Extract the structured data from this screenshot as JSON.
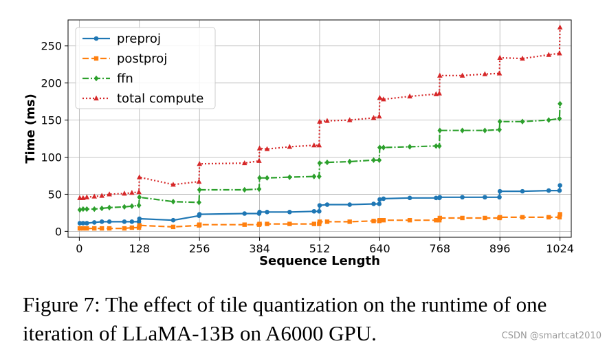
{
  "chart_data": {
    "type": "line",
    "title": "",
    "xlabel": "Sequence Length",
    "ylabel": "Time (ms)",
    "xlim": [
      -24,
      1048
    ],
    "ylim": [
      -8,
      285
    ],
    "xticks": [
      0,
      128,
      256,
      384,
      512,
      640,
      768,
      896,
      1024
    ],
    "yticks": [
      0,
      50,
      100,
      150,
      200,
      250
    ],
    "grid": true,
    "legend_position": "top-left",
    "series": [
      {
        "name": "preproj",
        "color": "#1f77b4",
        "style": "solid",
        "marker": "circle",
        "x": [
          1,
          8,
          16,
          32,
          48,
          64,
          96,
          112,
          127,
          128,
          200,
          255,
          256,
          352,
          383,
          384,
          400,
          448,
          500,
          511,
          512,
          528,
          576,
          627,
          639,
          640,
          648,
          704,
          760,
          767,
          768,
          816,
          864,
          895,
          896,
          944,
          1000,
          1023,
          1024
        ],
        "y": [
          11,
          11,
          11,
          12,
          13,
          13,
          13,
          13,
          13,
          17,
          15,
          21,
          23,
          24,
          24,
          26,
          26,
          26,
          27,
          27,
          35,
          36,
          36,
          37,
          37,
          43,
          44,
          45,
          45,
          45,
          46,
          46,
          46,
          46,
          54,
          54,
          55,
          55,
          62
        ]
      },
      {
        "name": "postproj",
        "color": "#ff7f0e",
        "style": "dashed",
        "marker": "square",
        "x": [
          1,
          8,
          16,
          32,
          48,
          64,
          96,
          112,
          127,
          128,
          200,
          255,
          256,
          352,
          383,
          384,
          400,
          448,
          500,
          511,
          512,
          528,
          576,
          627,
          639,
          640,
          648,
          704,
          760,
          767,
          768,
          816,
          864,
          895,
          896,
          944,
          1000,
          1023,
          1024
        ],
        "y": [
          4,
          4,
          4,
          4,
          4,
          4,
          4,
          5,
          5,
          8,
          6,
          8,
          9,
          9,
          9,
          10,
          10,
          10,
          10,
          10,
          13,
          13,
          13,
          14,
          14,
          15,
          15,
          15,
          15,
          15,
          18,
          18,
          18,
          18,
          19,
          19,
          19,
          19,
          23
        ]
      },
      {
        "name": "ffn",
        "color": "#2ca02c",
        "style": "dashdot",
        "marker": "diamond",
        "x": [
          1,
          8,
          16,
          32,
          48,
          64,
          96,
          112,
          127,
          128,
          200,
          255,
          256,
          352,
          383,
          384,
          400,
          448,
          500,
          511,
          512,
          528,
          576,
          627,
          639,
          640,
          648,
          704,
          760,
          767,
          768,
          816,
          864,
          895,
          896,
          944,
          1000,
          1023,
          1024
        ],
        "y": [
          29,
          30,
          30,
          30,
          31,
          32,
          33,
          34,
          35,
          46,
          40,
          39,
          56,
          56,
          57,
          72,
          72,
          73,
          74,
          74,
          92,
          93,
          94,
          96,
          96,
          113,
          113,
          114,
          115,
          115,
          136,
          136,
          136,
          137,
          148,
          148,
          150,
          152,
          172
        ]
      },
      {
        "name": "total compute",
        "color": "#d62728",
        "style": "dotted",
        "marker": "triangle",
        "x": [
          1,
          8,
          16,
          32,
          48,
          64,
          96,
          112,
          127,
          128,
          200,
          255,
          256,
          352,
          383,
          384,
          400,
          448,
          500,
          511,
          512,
          528,
          576,
          627,
          639,
          640,
          648,
          704,
          760,
          767,
          768,
          816,
          864,
          895,
          896,
          944,
          1000,
          1023,
          1024
        ],
        "y": [
          45,
          45,
          46,
          47,
          48,
          50,
          51,
          52,
          53,
          73,
          63,
          67,
          91,
          92,
          95,
          112,
          111,
          114,
          116,
          116,
          148,
          149,
          150,
          153,
          155,
          180,
          178,
          182,
          185,
          186,
          210,
          210,
          212,
          213,
          234,
          233,
          238,
          240,
          275
        ]
      }
    ]
  },
  "caption": {
    "text": "Figure 7: The effect of tile quantization on the runtime of one iteration of LLaMA-13B on A6000 GPU."
  },
  "watermark": {
    "text": "CSDN @smartcat2010"
  }
}
